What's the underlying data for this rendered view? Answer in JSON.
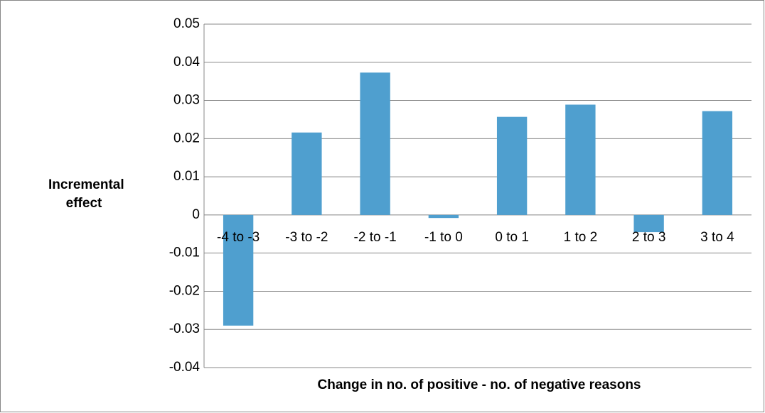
{
  "chart_data": {
    "type": "bar",
    "ylabel": "Incremental effect",
    "xlabel": "Change in no. of positive - no. of negative reasons",
    "categories": [
      "-4 to -3",
      "-3 to -2",
      "-2 to -1",
      "-1 to 0",
      "0 to 1",
      "1 to 2",
      "2 to 3",
      "3 to 4"
    ],
    "values": [
      -0.029,
      0.0216,
      0.0373,
      -0.0008,
      0.0257,
      0.0289,
      -0.0045,
      0.0272
    ],
    "color": "#4f9fcf",
    "ylim": [
      -0.04,
      0.05
    ],
    "yticks": [
      -0.04,
      -0.03,
      -0.02,
      -0.01,
      0,
      0.01,
      0.02,
      0.03,
      0.04,
      0.05
    ],
    "grid": true
  }
}
